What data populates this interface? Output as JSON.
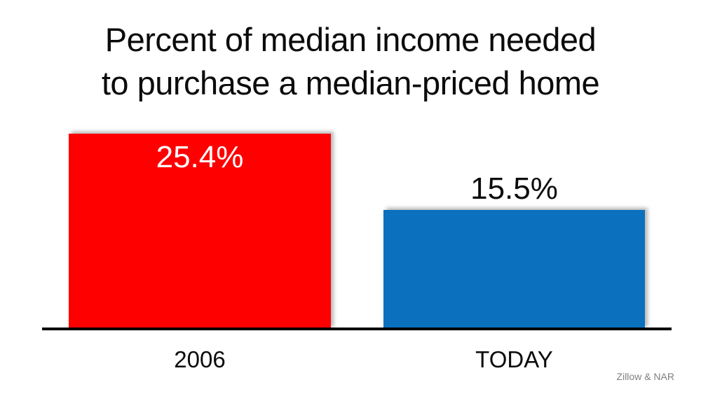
{
  "chart_data": {
    "type": "bar",
    "title": "Percent of median income needed to purchase a median-priced home",
    "title_lines": [
      "Percent of median income needed",
      "to purchase a median-priced home"
    ],
    "categories": [
      "2006",
      "TODAY"
    ],
    "values": [
      25.4,
      15.5
    ],
    "value_labels": [
      "25.4%",
      "15.5%"
    ],
    "value_label_position": [
      "inside",
      "above"
    ],
    "bar_colors": [
      "#fe0000",
      "#0b70bd"
    ],
    "ylim": [
      0,
      25.4
    ],
    "xlabel": "",
    "ylabel": "",
    "grid": false,
    "legend": false,
    "axis_line_color": "#000000",
    "source": "Zillow & NAR"
  }
}
